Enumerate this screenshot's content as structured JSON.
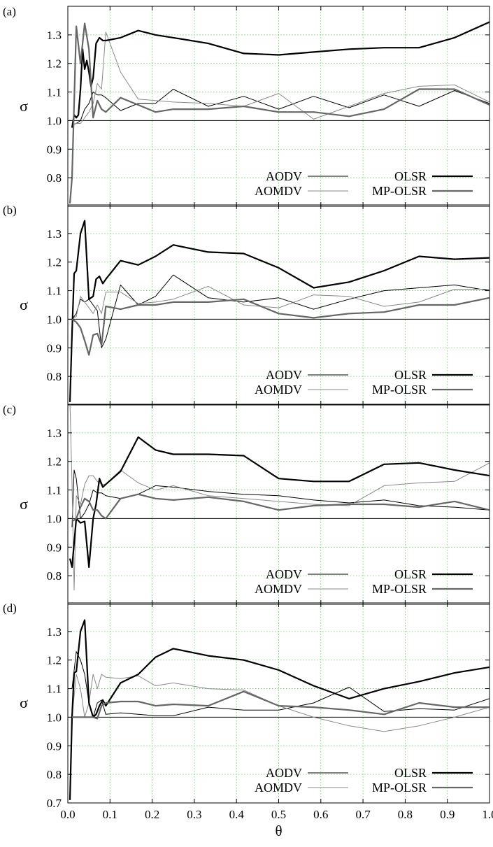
{
  "chart_data": [
    {
      "type": "line",
      "panel_label": "(a)",
      "ylabel": "σ",
      "ylim": [
        0.7,
        1.4
      ],
      "xlim": [
        0,
        1.0
      ],
      "yticks": [
        "0.8",
        "0.9",
        "1.0",
        "1.1",
        "1.2",
        "1.3"
      ],
      "grid": true,
      "legend_position": "bottom-right",
      "reference_line": 1.0,
      "series": [
        {
          "name": "AODV",
          "color": "#000000",
          "width": 1.0,
          "x": [
            0.01,
            0.02,
            0.03,
            0.04,
            0.05,
            0.06,
            0.07,
            0.08,
            0.09,
            0.125,
            0.167,
            0.208,
            0.25,
            0.333,
            0.417,
            0.5,
            0.583,
            0.667,
            0.75,
            0.833,
            0.917,
            1.0
          ],
          "y": [
            0.985,
            0.99,
            1.0,
            1.04,
            1.06,
            1.1,
            1.09,
            1.09,
            1.08,
            1.035,
            1.06,
            1.06,
            1.11,
            1.05,
            1.085,
            1.04,
            1.085,
            1.045,
            1.09,
            1.05,
            1.105,
            1.06
          ]
        },
        {
          "name": "AOMDV",
          "color": "#888888",
          "width": 1.0,
          "x": [
            0.01,
            0.02,
            0.03,
            0.04,
            0.05,
            0.06,
            0.07,
            0.08,
            0.09,
            0.125,
            0.167,
            0.208,
            0.25,
            0.333,
            0.417,
            0.5,
            0.583,
            0.667,
            0.75,
            0.833,
            0.917,
            1.0
          ],
          "y": [
            0.985,
            0.99,
            0.99,
            1.01,
            1.03,
            1.06,
            1.13,
            1.11,
            1.31,
            1.17,
            1.075,
            1.07,
            1.065,
            1.06,
            1.05,
            1.095,
            1.005,
            1.05,
            1.095,
            1.12,
            1.125,
            1.065
          ]
        },
        {
          "name": "OLSR",
          "color": "#000000",
          "width": 2.2,
          "x": [
            0.01,
            0.015,
            0.02,
            0.025,
            0.03,
            0.035,
            0.04,
            0.045,
            0.05,
            0.055,
            0.06,
            0.067,
            0.075,
            0.083,
            0.09,
            0.125,
            0.167,
            0.208,
            0.25,
            0.333,
            0.417,
            0.5,
            0.583,
            0.667,
            0.75,
            0.833,
            0.917,
            1.0
          ],
          "y": [
            0.975,
            1.02,
            1.01,
            1.02,
            1.11,
            1.25,
            1.18,
            1.21,
            1.17,
            1.12,
            1.15,
            1.27,
            1.29,
            1.28,
            1.28,
            1.29,
            1.315,
            1.3,
            1.29,
            1.27,
            1.235,
            1.23,
            1.24,
            1.25,
            1.255,
            1.255,
            1.29,
            1.345
          ]
        },
        {
          "name": "MP-OLSR",
          "color": "#666666",
          "width": 2.2,
          "x": [
            0.005,
            0.01,
            0.02,
            0.03,
            0.04,
            0.05,
            0.06,
            0.07,
            0.08,
            0.09,
            0.125,
            0.167,
            0.208,
            0.25,
            0.333,
            0.417,
            0.5,
            0.583,
            0.667,
            0.75,
            0.833,
            0.917,
            1.0
          ],
          "y": [
            0.71,
            0.8,
            1.33,
            1.2,
            1.34,
            1.25,
            1.01,
            1.07,
            1.04,
            1.03,
            1.08,
            1.055,
            1.03,
            1.04,
            1.04,
            1.05,
            1.03,
            1.03,
            1.015,
            1.04,
            1.11,
            1.11,
            1.055
          ]
        }
      ],
      "legend": [
        {
          "label": "AODV"
        },
        {
          "label": "AOMDV"
        },
        {
          "label": "OLSR"
        },
        {
          "label": "MP-OLSR"
        }
      ]
    },
    {
      "type": "line",
      "panel_label": "(b)",
      "ylabel": "σ",
      "ylim": [
        0.7,
        1.4
      ],
      "xlim": [
        0,
        1.0
      ],
      "yticks": [
        "0.8",
        "0.9",
        "1.0",
        "1.1",
        "1.2",
        "1.3"
      ],
      "grid": true,
      "legend_position": "bottom-right",
      "reference_line": 1.0,
      "series": [
        {
          "name": "AODV",
          "color": "#000000",
          "width": 1.0,
          "x": [
            0.01,
            0.02,
            0.03,
            0.04,
            0.05,
            0.06,
            0.07,
            0.08,
            0.09,
            0.125,
            0.167,
            0.208,
            0.25,
            0.333,
            0.417,
            0.5,
            0.583,
            0.667,
            0.75,
            0.833,
            0.917,
            1.0
          ],
          "y": [
            1.0,
            1.02,
            1.07,
            1.06,
            1.07,
            1.05,
            1.03,
            0.9,
            0.93,
            1.12,
            1.05,
            1.08,
            1.155,
            1.075,
            1.06,
            1.075,
            1.035,
            1.07,
            1.1,
            1.11,
            1.12,
            1.1
          ]
        },
        {
          "name": "AOMDV",
          "color": "#888888",
          "width": 1.0,
          "x": [
            0.01,
            0.02,
            0.03,
            0.04,
            0.05,
            0.06,
            0.07,
            0.08,
            0.09,
            0.125,
            0.167,
            0.208,
            0.25,
            0.333,
            0.417,
            0.5,
            0.583,
            0.667,
            0.75,
            0.833,
            0.917,
            1.0
          ],
          "y": [
            1.0,
            1.01,
            1.08,
            1.06,
            1.04,
            1.02,
            1.05,
            1.02,
            1.095,
            1.095,
            1.055,
            1.06,
            1.07,
            1.115,
            1.05,
            1.04,
            1.085,
            1.08,
            1.045,
            1.06,
            1.105,
            1.105
          ]
        },
        {
          "name": "OLSR",
          "color": "#000000",
          "width": 2.2,
          "x": [
            0.005,
            0.01,
            0.015,
            0.02,
            0.03,
            0.04,
            0.05,
            0.06,
            0.067,
            0.075,
            0.083,
            0.09,
            0.125,
            0.167,
            0.208,
            0.25,
            0.333,
            0.417,
            0.5,
            0.583,
            0.667,
            0.75,
            0.833,
            0.917,
            1.0
          ],
          "y": [
            0.71,
            0.95,
            1.16,
            1.17,
            1.3,
            1.345,
            1.07,
            1.08,
            1.14,
            1.15,
            1.125,
            1.14,
            1.205,
            1.19,
            1.22,
            1.26,
            1.235,
            1.23,
            1.18,
            1.11,
            1.13,
            1.17,
            1.22,
            1.21,
            1.215
          ]
        },
        {
          "name": "MP-OLSR",
          "color": "#666666",
          "width": 2.2,
          "x": [
            0.01,
            0.02,
            0.03,
            0.04,
            0.05,
            0.06,
            0.07,
            0.08,
            0.09,
            0.125,
            0.167,
            0.208,
            0.25,
            0.333,
            0.417,
            0.5,
            0.583,
            0.667,
            0.75,
            0.833,
            0.917,
            1.0
          ],
          "y": [
            1.0,
            0.99,
            0.97,
            0.925,
            0.875,
            0.945,
            0.95,
            0.91,
            1.045,
            1.035,
            1.05,
            1.05,
            1.06,
            1.06,
            1.07,
            1.02,
            1.005,
            1.02,
            1.025,
            1.05,
            1.05,
            1.075
          ]
        }
      ],
      "legend": [
        {
          "label": "AODV"
        },
        {
          "label": "AOMDV"
        },
        {
          "label": "OLSR"
        },
        {
          "label": "MP-OLSR"
        }
      ]
    },
    {
      "type": "line",
      "panel_label": "(c)",
      "ylabel": "σ",
      "ylim": [
        0.7,
        1.4
      ],
      "xlim": [
        0,
        1.0
      ],
      "yticks": [
        "0.8",
        "0.9",
        "1.0",
        "1.1",
        "1.2",
        "1.3"
      ],
      "grid": true,
      "legend_position": "bottom-right",
      "reference_line": 1.0,
      "series": [
        {
          "name": "AODV",
          "color": "#000000",
          "width": 1.0,
          "x": [
            0.01,
            0.015,
            0.02,
            0.03,
            0.04,
            0.05,
            0.06,
            0.07,
            0.08,
            0.09,
            0.125,
            0.167,
            0.208,
            0.25,
            0.333,
            0.417,
            0.5,
            0.583,
            0.667,
            0.75,
            0.833,
            0.917,
            1.0
          ],
          "y": [
            0.97,
            1.17,
            1.14,
            1.0,
            1.02,
            1.05,
            1.1,
            1.09,
            1.09,
            1.08,
            1.07,
            1.085,
            1.115,
            1.11,
            1.095,
            1.085,
            1.08,
            1.065,
            1.055,
            1.065,
            1.045,
            1.04,
            1.03
          ]
        },
        {
          "name": "AOMDV",
          "color": "#888888",
          "width": 1.0,
          "x": [
            0.005,
            0.01,
            0.015,
            0.02,
            0.03,
            0.04,
            0.05,
            0.06,
            0.07,
            0.08,
            0.09,
            0.125,
            0.167,
            0.208,
            0.25,
            0.333,
            0.417,
            0.5,
            0.583,
            0.667,
            0.75,
            0.833,
            0.917,
            1.0
          ],
          "y": [
            1.41,
            1.12,
            0.75,
            1.08,
            1.05,
            1.12,
            1.15,
            1.15,
            1.13,
            1.12,
            1.12,
            1.17,
            1.125,
            1.1,
            1.115,
            1.08,
            1.07,
            1.06,
            1.05,
            1.045,
            1.115,
            1.125,
            1.13,
            1.195
          ]
        },
        {
          "name": "OLSR",
          "color": "#000000",
          "width": 2.2,
          "x": [
            0.005,
            0.01,
            0.02,
            0.03,
            0.04,
            0.05,
            0.06,
            0.067,
            0.075,
            0.083,
            0.09,
            0.125,
            0.167,
            0.208,
            0.25,
            0.333,
            0.417,
            0.5,
            0.583,
            0.667,
            0.75,
            0.833,
            0.917,
            1.0
          ],
          "y": [
            0.86,
            0.83,
            1.0,
            0.985,
            0.99,
            0.83,
            1.0,
            1.05,
            1.14,
            1.11,
            1.12,
            1.165,
            1.285,
            1.24,
            1.225,
            1.225,
            1.22,
            1.14,
            1.13,
            1.13,
            1.19,
            1.195,
            1.17,
            1.15
          ]
        },
        {
          "name": "MP-OLSR",
          "color": "#666666",
          "width": 2.2,
          "x": [
            0.01,
            0.02,
            0.03,
            0.04,
            0.05,
            0.06,
            0.07,
            0.08,
            0.09,
            0.125,
            0.167,
            0.208,
            0.25,
            0.333,
            0.417,
            0.5,
            0.583,
            0.667,
            0.75,
            0.833,
            0.917,
            1.0
          ],
          "y": [
            0.99,
            1.0,
            1.04,
            1.07,
            1.06,
            1.03,
            1.03,
            1.01,
            1.0,
            1.07,
            1.085,
            1.07,
            1.065,
            1.075,
            1.06,
            1.03,
            1.045,
            1.05,
            1.05,
            1.04,
            1.06,
            1.03
          ]
        }
      ],
      "legend": [
        {
          "label": "AODV"
        },
        {
          "label": "AOMDV"
        },
        {
          "label": "OLSR"
        },
        {
          "label": "MP-OLSR"
        }
      ]
    },
    {
      "type": "line",
      "panel_label": "(d)",
      "ylabel": "σ",
      "xlabel": "θ",
      "ylim": [
        0.7,
        1.4
      ],
      "xlim": [
        0,
        1.0
      ],
      "yticks": [
        "0.7",
        "0.8",
        "0.9",
        "1.0",
        "1.1",
        "1.2",
        "1.3"
      ],
      "xticks": [
        "0.0",
        "0.1",
        "0.2",
        "0.3",
        "0.4",
        "0.5",
        "0.6",
        "0.7",
        "0.8",
        "0.9",
        "1.0"
      ],
      "grid": true,
      "legend_position": "bottom-right",
      "reference_line": 1.0,
      "series": [
        {
          "name": "AODV",
          "color": "#000000",
          "width": 1.0,
          "x": [
            0.01,
            0.02,
            0.03,
            0.04,
            0.05,
            0.06,
            0.07,
            0.08,
            0.09,
            0.125,
            0.167,
            0.208,
            0.25,
            0.333,
            0.417,
            0.5,
            0.583,
            0.667,
            0.75,
            0.833,
            0.917,
            1.0
          ],
          "y": [
            1.1,
            1.23,
            1.2,
            1.15,
            1.05,
            1.0,
            1.05,
            1.06,
            1.01,
            1.015,
            1.01,
            1.005,
            1.005,
            1.035,
            1.025,
            1.025,
            1.05,
            1.105,
            1.02,
            1.03,
            1.025,
            1.065
          ]
        },
        {
          "name": "AOMDV",
          "color": "#888888",
          "width": 1.0,
          "x": [
            0.01,
            0.02,
            0.03,
            0.04,
            0.05,
            0.06,
            0.07,
            0.08,
            0.09,
            0.125,
            0.167,
            0.208,
            0.25,
            0.333,
            0.417,
            0.5,
            0.583,
            0.667,
            0.75,
            0.833,
            0.917,
            1.0
          ],
          "y": [
            1.0,
            1.15,
            1.1,
            1.0,
            1.05,
            1.15,
            1.1,
            1.15,
            1.14,
            1.135,
            1.145,
            1.11,
            1.12,
            1.1,
            1.095,
            1.04,
            1.0,
            0.97,
            0.95,
            0.97,
            1.0,
            1.035
          ]
        },
        {
          "name": "OLSR",
          "color": "#000000",
          "width": 2.2,
          "x": [
            0.005,
            0.01,
            0.015,
            0.02,
            0.03,
            0.04,
            0.05,
            0.06,
            0.067,
            0.075,
            0.083,
            0.09,
            0.125,
            0.167,
            0.208,
            0.25,
            0.333,
            0.417,
            0.5,
            0.583,
            0.667,
            0.75,
            0.833,
            0.917,
            1.0
          ],
          "y": [
            0.71,
            1.0,
            1.155,
            1.16,
            1.3,
            1.34,
            1.05,
            1.0,
            1.01,
            1.04,
            1.06,
            1.04,
            1.12,
            1.15,
            1.21,
            1.24,
            1.215,
            1.2,
            1.165,
            1.11,
            1.065,
            1.1,
            1.125,
            1.155,
            1.175
          ]
        },
        {
          "name": "MP-OLSR",
          "color": "#666666",
          "width": 2.2,
          "x": [
            0.01,
            0.02,
            0.03,
            0.04,
            0.05,
            0.06,
            0.07,
            0.08,
            0.09,
            0.125,
            0.167,
            0.208,
            0.25,
            0.333,
            0.417,
            0.5,
            0.583,
            0.667,
            0.75,
            0.833,
            0.917,
            1.0
          ],
          "y": [
            1.0,
            1.0,
            1.0,
            1.0,
            1.0,
            1.0,
            0.995,
            1.04,
            1.05,
            1.055,
            1.055,
            1.04,
            1.045,
            1.04,
            1.09,
            1.04,
            1.035,
            1.025,
            1.01,
            1.05,
            1.035,
            1.035
          ]
        }
      ],
      "legend": [
        {
          "label": "AODV"
        },
        {
          "label": "AOMDV"
        },
        {
          "label": "OLSR"
        },
        {
          "label": "MP-OLSR"
        }
      ]
    }
  ]
}
